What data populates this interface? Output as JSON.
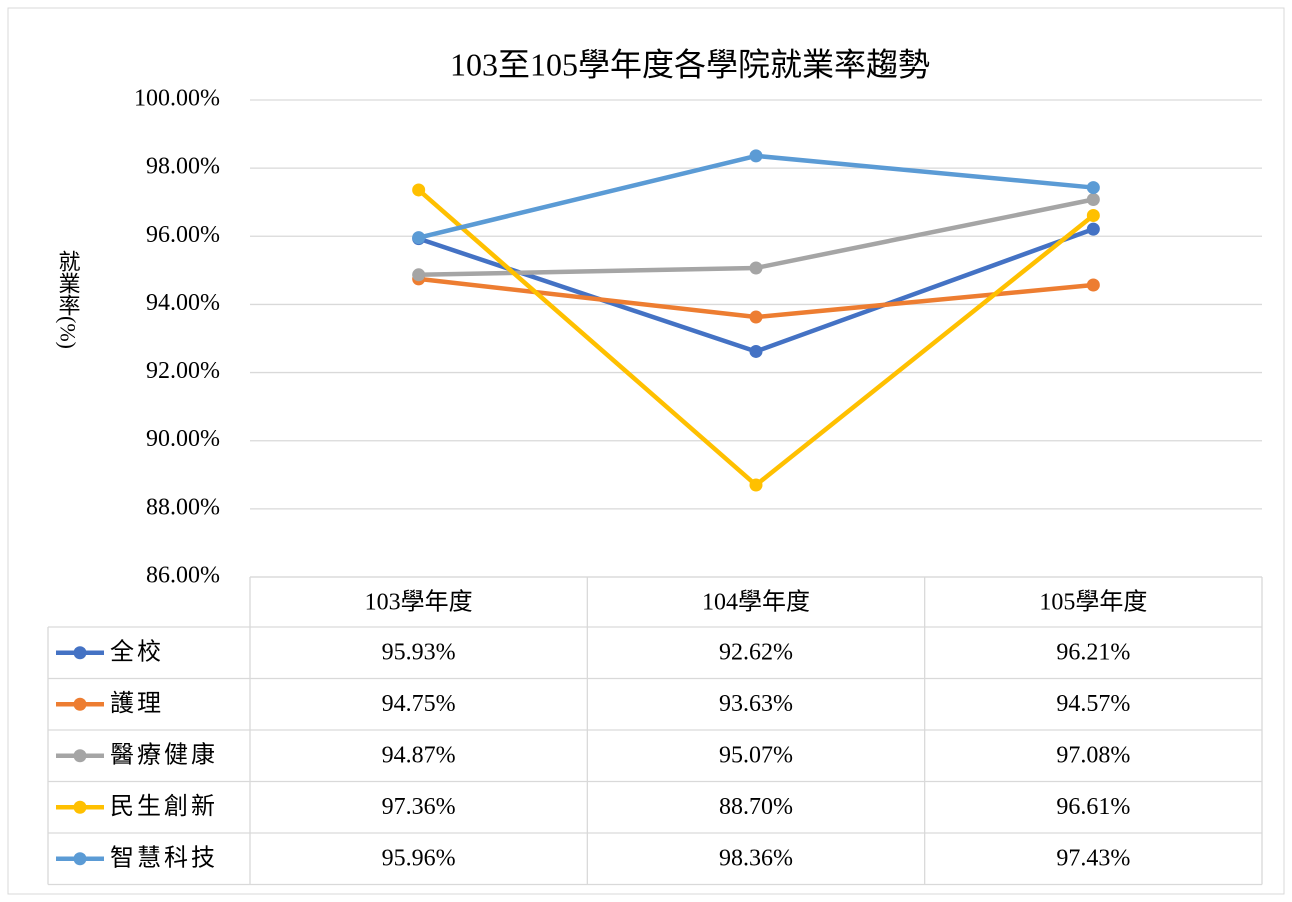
{
  "chart_data": {
    "type": "line",
    "title": "103至105學年度各學院就業率趨勢",
    "y_label": "就業率(%)",
    "categories": [
      "103學年度",
      "104學年度",
      "105學年度"
    ],
    "series": [
      {
        "name": "全校",
        "color": "#4472c4",
        "values": [
          95.93,
          92.62,
          96.21
        ],
        "value_labels": [
          "95.93%",
          "92.62%",
          "96.21%"
        ]
      },
      {
        "name": "護理",
        "color": "#ed7d31",
        "values": [
          94.75,
          93.63,
          94.57
        ],
        "value_labels": [
          "94.75%",
          "93.63%",
          "94.57%"
        ]
      },
      {
        "name": "醫療健康",
        "color": "#a5a5a5",
        "values": [
          94.87,
          95.07,
          97.08
        ],
        "value_labels": [
          "94.87%",
          "95.07%",
          "97.08%"
        ]
      },
      {
        "name": "民生創新",
        "color": "#ffc000",
        "values": [
          97.36,
          88.7,
          96.61
        ],
        "value_labels": [
          "97.36%",
          "88.70%",
          "96.61%"
        ]
      },
      {
        "name": "智慧科技",
        "color": "#5b9bd5",
        "values": [
          95.96,
          98.36,
          97.43
        ],
        "value_labels": [
          "95.96%",
          "98.36%",
          "97.43%"
        ]
      }
    ],
    "ylim": [
      86,
      100
    ],
    "yticks": [
      {
        "value": 86,
        "label": "86.00%"
      },
      {
        "value": 88,
        "label": "88.00%"
      },
      {
        "value": 90,
        "label": "90.00%"
      },
      {
        "value": 92,
        "label": "92.00%"
      },
      {
        "value": 94,
        "label": "94.00%"
      },
      {
        "value": 96,
        "label": "96.00%"
      },
      {
        "value": 98,
        "label": "98.00%"
      },
      {
        "value": 100,
        "label": "100.00%"
      }
    ],
    "grid": true
  }
}
